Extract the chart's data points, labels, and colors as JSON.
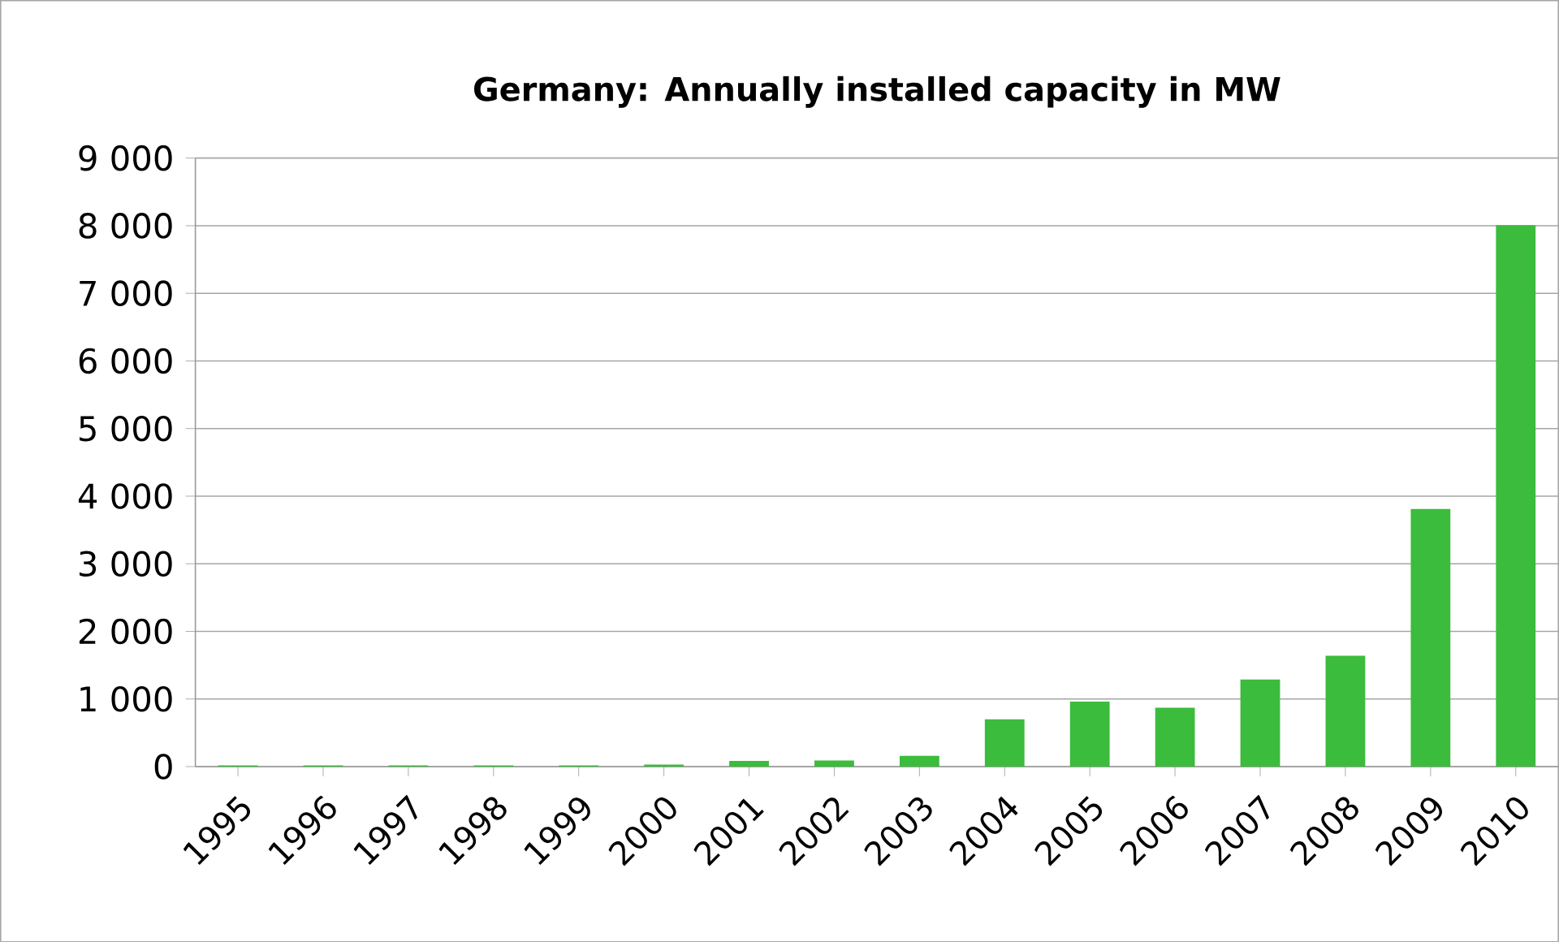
{
  "chart_data": {
    "type": "bar",
    "title": "Germany: Annually installed capacity in MW",
    "categories": [
      "1995",
      "1996",
      "1997",
      "1998",
      "1999",
      "2000",
      "2001",
      "2002",
      "2003",
      "2004",
      "2005",
      "2006",
      "2007",
      "2008",
      "2009",
      "2010"
    ],
    "values": [
      10,
      10,
      10,
      10,
      10,
      20,
      75,
      80,
      150,
      690,
      950,
      860,
      1280,
      1630,
      3800,
      8000
    ],
    "color": "#3cbc3c",
    "ylim": [
      0,
      9000
    ],
    "yticks": [
      0,
      {
        "value": 1000,
        "label": "1 000"
      },
      {
        "value": 2000,
        "label": "2 000"
      },
      {
        "value": 3000,
        "label": "3 000"
      },
      {
        "value": 4000,
        "label": "4 000"
      },
      {
        "value": 5000,
        "label": "5 000"
      },
      {
        "value": 6000,
        "label": "6 000"
      },
      {
        "value": 7000,
        "label": "7 000"
      },
      {
        "value": 8000,
        "label": "8 000"
      },
      {
        "value": 9000,
        "label": "9 000"
      }
    ],
    "grid": "y"
  }
}
